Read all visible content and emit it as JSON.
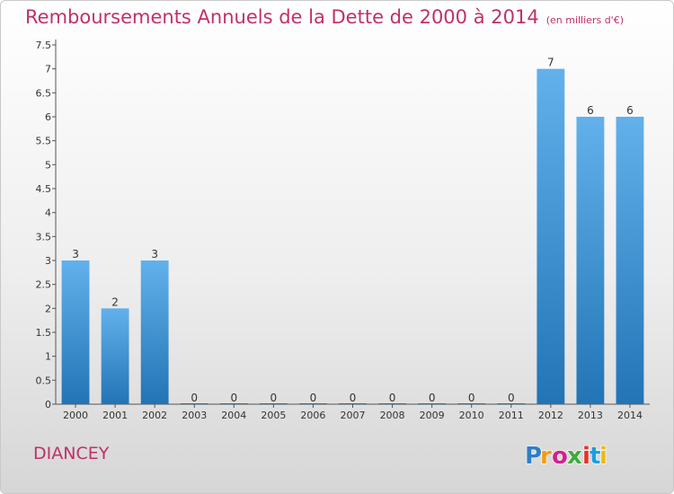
{
  "title": "Remboursements Annuels de la Dette de 2000 à 2014",
  "subtitle": "(en milliers d'€)",
  "commune": "DIANCEY",
  "logo": {
    "text": "Proxiti",
    "colors": [
      "#2d7ec9",
      "#f39c12",
      "#d02090",
      "#3cab3a",
      "#e2332a",
      "#1a9fdc",
      "#f2b811"
    ]
  },
  "colors": {
    "bar_top": "#62b1ec",
    "bar_bottom": "#2274b5",
    "title": "#c0306a",
    "axis": "#555555"
  },
  "chart_data": {
    "type": "bar",
    "title": "Remboursements Annuels de la Dette de 2000 à 2014",
    "subtitle": "(en milliers d'€)",
    "categories": [
      "2000",
      "2001",
      "2002",
      "2003",
      "2004",
      "2005",
      "2006",
      "2007",
      "2008",
      "2009",
      "2010",
      "2011",
      "2012",
      "2013",
      "2014"
    ],
    "values": [
      3,
      2,
      3,
      0,
      0,
      0,
      0,
      0,
      0,
      0,
      0,
      0,
      7,
      6,
      6
    ],
    "data_labels": [
      "3",
      "2",
      "3",
      "0",
      "0",
      "0",
      "0",
      "0",
      "0",
      "0",
      "0",
      "0",
      "7",
      "6",
      "6"
    ],
    "yticks": [
      "0",
      "0.5",
      "1",
      "1.5",
      "2",
      "2.5",
      "3",
      "3.5",
      "4",
      "4.5",
      "5",
      "5.5",
      "6",
      "6.5",
      "7",
      "7.5"
    ],
    "ylim": [
      0,
      7.5
    ],
    "grid": false,
    "legend": "none"
  }
}
